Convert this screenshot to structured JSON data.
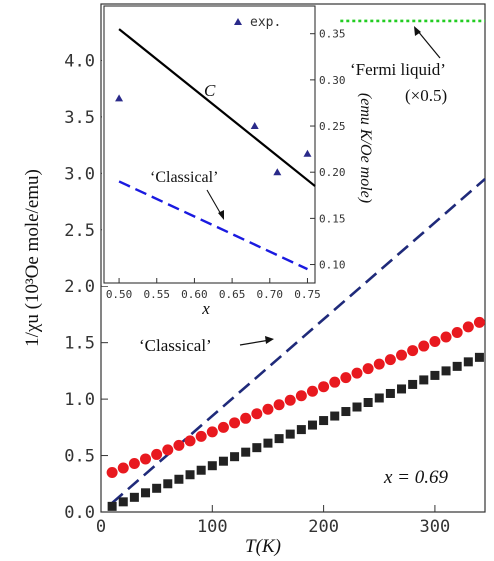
{
  "chart_data": [
    {
      "type": "scatter",
      "xlabel": "T(K)",
      "ylabel": "1/χu (10³Oe mole/emu)",
      "xlim": [
        0,
        345
      ],
      "ylim": [
        0,
        4.5
      ],
      "xticks": [
        0,
        100,
        200,
        300
      ],
      "yticks": [
        0.0,
        0.5,
        1.0,
        1.5,
        2.0,
        2.5,
        3.0,
        3.5,
        4.0
      ],
      "xtick_labels": [
        "0",
        "100",
        "200",
        "300"
      ],
      "ytick_labels": [
        "0.0",
        "0.5",
        "1.0",
        "1.5",
        "2.0",
        "2.5",
        "3.0",
        "3.5",
        "4.0"
      ],
      "grid": false,
      "series": [
        {
          "marker": "circle",
          "color": "#e8191f",
          "x": [
            10,
            20,
            30,
            40,
            50,
            60,
            70,
            80,
            90,
            100,
            110,
            120,
            130,
            140,
            150,
            160,
            170,
            180,
            190,
            200,
            210,
            220,
            230,
            240,
            250,
            260,
            270,
            280,
            290,
            300,
            310,
            320,
            330,
            340
          ],
          "y": [
            0.35,
            0.39,
            0.43,
            0.47,
            0.51,
            0.55,
            0.59,
            0.63,
            0.67,
            0.71,
            0.75,
            0.79,
            0.83,
            0.87,
            0.91,
            0.95,
            0.99,
            1.03,
            1.07,
            1.11,
            1.15,
            1.19,
            1.23,
            1.27,
            1.31,
            1.35,
            1.39,
            1.43,
            1.47,
            1.51,
            1.55,
            1.59,
            1.64,
            1.68
          ]
        },
        {
          "marker": "square",
          "color": "#222222",
          "x": [
            10,
            20,
            30,
            40,
            50,
            60,
            70,
            80,
            90,
            100,
            110,
            120,
            130,
            140,
            150,
            160,
            170,
            180,
            190,
            200,
            210,
            220,
            230,
            240,
            250,
            260,
            270,
            280,
            290,
            300,
            310,
            320,
            330,
            340
          ],
          "y": [
            0.05,
            0.09,
            0.13,
            0.17,
            0.21,
            0.25,
            0.29,
            0.33,
            0.37,
            0.41,
            0.45,
            0.49,
            0.53,
            0.57,
            0.61,
            0.65,
            0.69,
            0.73,
            0.77,
            0.81,
            0.85,
            0.89,
            0.93,
            0.97,
            1.01,
            1.05,
            1.09,
            1.13,
            1.17,
            1.21,
            1.25,
            1.29,
            1.33,
            1.37
          ]
        }
      ],
      "lines": [
        {
          "style": "dashed",
          "color": "#1f2a7a",
          "x": [
            10,
            345
          ],
          "y": [
            0.08,
            2.95
          ]
        },
        {
          "style": "dotted",
          "color": "#22cc22",
          "x": [
            215,
            345
          ],
          "y": [
            4.35,
            4.35
          ]
        }
      ],
      "annotations": [
        {
          "text": "‘Classical’",
          "arrow": true
        },
        {
          "text": "‘Fermi liquid’",
          "arrow": true
        },
        {
          "text": "(×0.5)"
        },
        {
          "text": "x = 0.69"
        }
      ]
    },
    {
      "type": "line",
      "xlabel": "x",
      "ylabel": "(emu K/Oe mole)",
      "xlim": [
        0.48,
        0.76
      ],
      "ylim": [
        0.08,
        0.38
      ],
      "xticks": [
        0.5,
        0.55,
        0.6,
        0.65,
        0.7,
        0.75
      ],
      "yticks": [
        0.1,
        0.15,
        0.2,
        0.25,
        0.3,
        0.35
      ],
      "xtick_labels": [
        "0.50",
        "0.55",
        "0.60",
        "0.65",
        "0.70",
        "0.75"
      ],
      "ytick_labels": [
        "0.10",
        "0.15",
        "0.20",
        "0.25",
        "0.30",
        "0.35"
      ],
      "legend_placement": "top-right",
      "series": [
        {
          "name": "exp.",
          "style": "triangle-markers",
          "color": "#2a2a8a",
          "x": [
            0.5,
            0.68,
            0.71,
            0.75
          ],
          "y": [
            0.28,
            0.25,
            0.2,
            0.22
          ]
        },
        {
          "name": "C",
          "style": "solid",
          "color": "#000000",
          "x": [
            0.5,
            0.76
          ],
          "y": [
            0.355,
            0.185
          ]
        },
        {
          "name": "‘Classical’",
          "style": "dashed",
          "color": "#1a1ae0",
          "x": [
            0.5,
            0.75
          ],
          "y": [
            0.19,
            0.095
          ]
        }
      ]
    }
  ]
}
